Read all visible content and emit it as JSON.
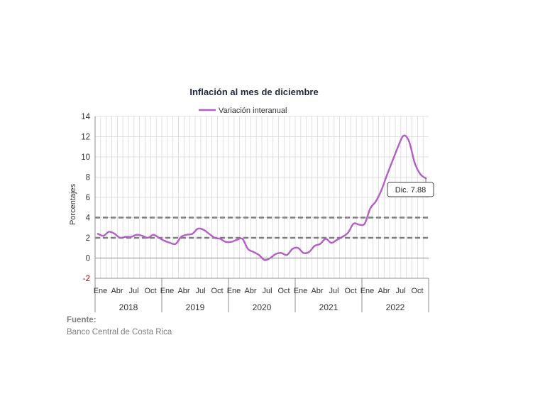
{
  "chart_data": {
    "type": "line",
    "title": "Inflación al mes de diciembre",
    "ylabel": "Porcentajes",
    "ylim": [
      -2,
      14
    ],
    "yticks": [
      -2,
      0,
      2,
      4,
      6,
      8,
      10,
      12,
      14
    ],
    "grid": true,
    "legend": "top-center",
    "month_labels": [
      "Ene",
      "Abr",
      "Jul",
      "Oct"
    ],
    "years": [
      "2018",
      "2019",
      "2020",
      "2021",
      "2022"
    ],
    "reference_lines": [
      2,
      4
    ],
    "series": [
      {
        "name": "Variación interanual",
        "color": "#b35fc7",
        "values": [
          2.4,
          2.2,
          2.6,
          2.4,
          2.0,
          2.1,
          2.1,
          2.3,
          2.2,
          2.0,
          2.3,
          2.0,
          1.7,
          1.5,
          1.4,
          2.1,
          2.3,
          2.4,
          2.9,
          2.8,
          2.4,
          2.0,
          1.9,
          1.6,
          1.6,
          1.8,
          1.9,
          0.9,
          0.6,
          0.3,
          -0.2,
          0.0,
          0.4,
          0.5,
          0.3,
          0.9,
          1.0,
          0.5,
          0.6,
          1.2,
          1.4,
          1.9,
          1.5,
          1.8,
          2.1,
          2.5,
          3.4,
          3.3,
          3.4,
          4.9,
          5.6,
          6.7,
          8.2,
          9.6,
          11.0,
          12.1,
          11.5,
          9.4,
          8.3,
          7.88
        ]
      }
    ],
    "annotation": "Dic. 7.88"
  },
  "source": {
    "heading": "Fuente:",
    "text": "Banco Central de Costa Rica"
  }
}
